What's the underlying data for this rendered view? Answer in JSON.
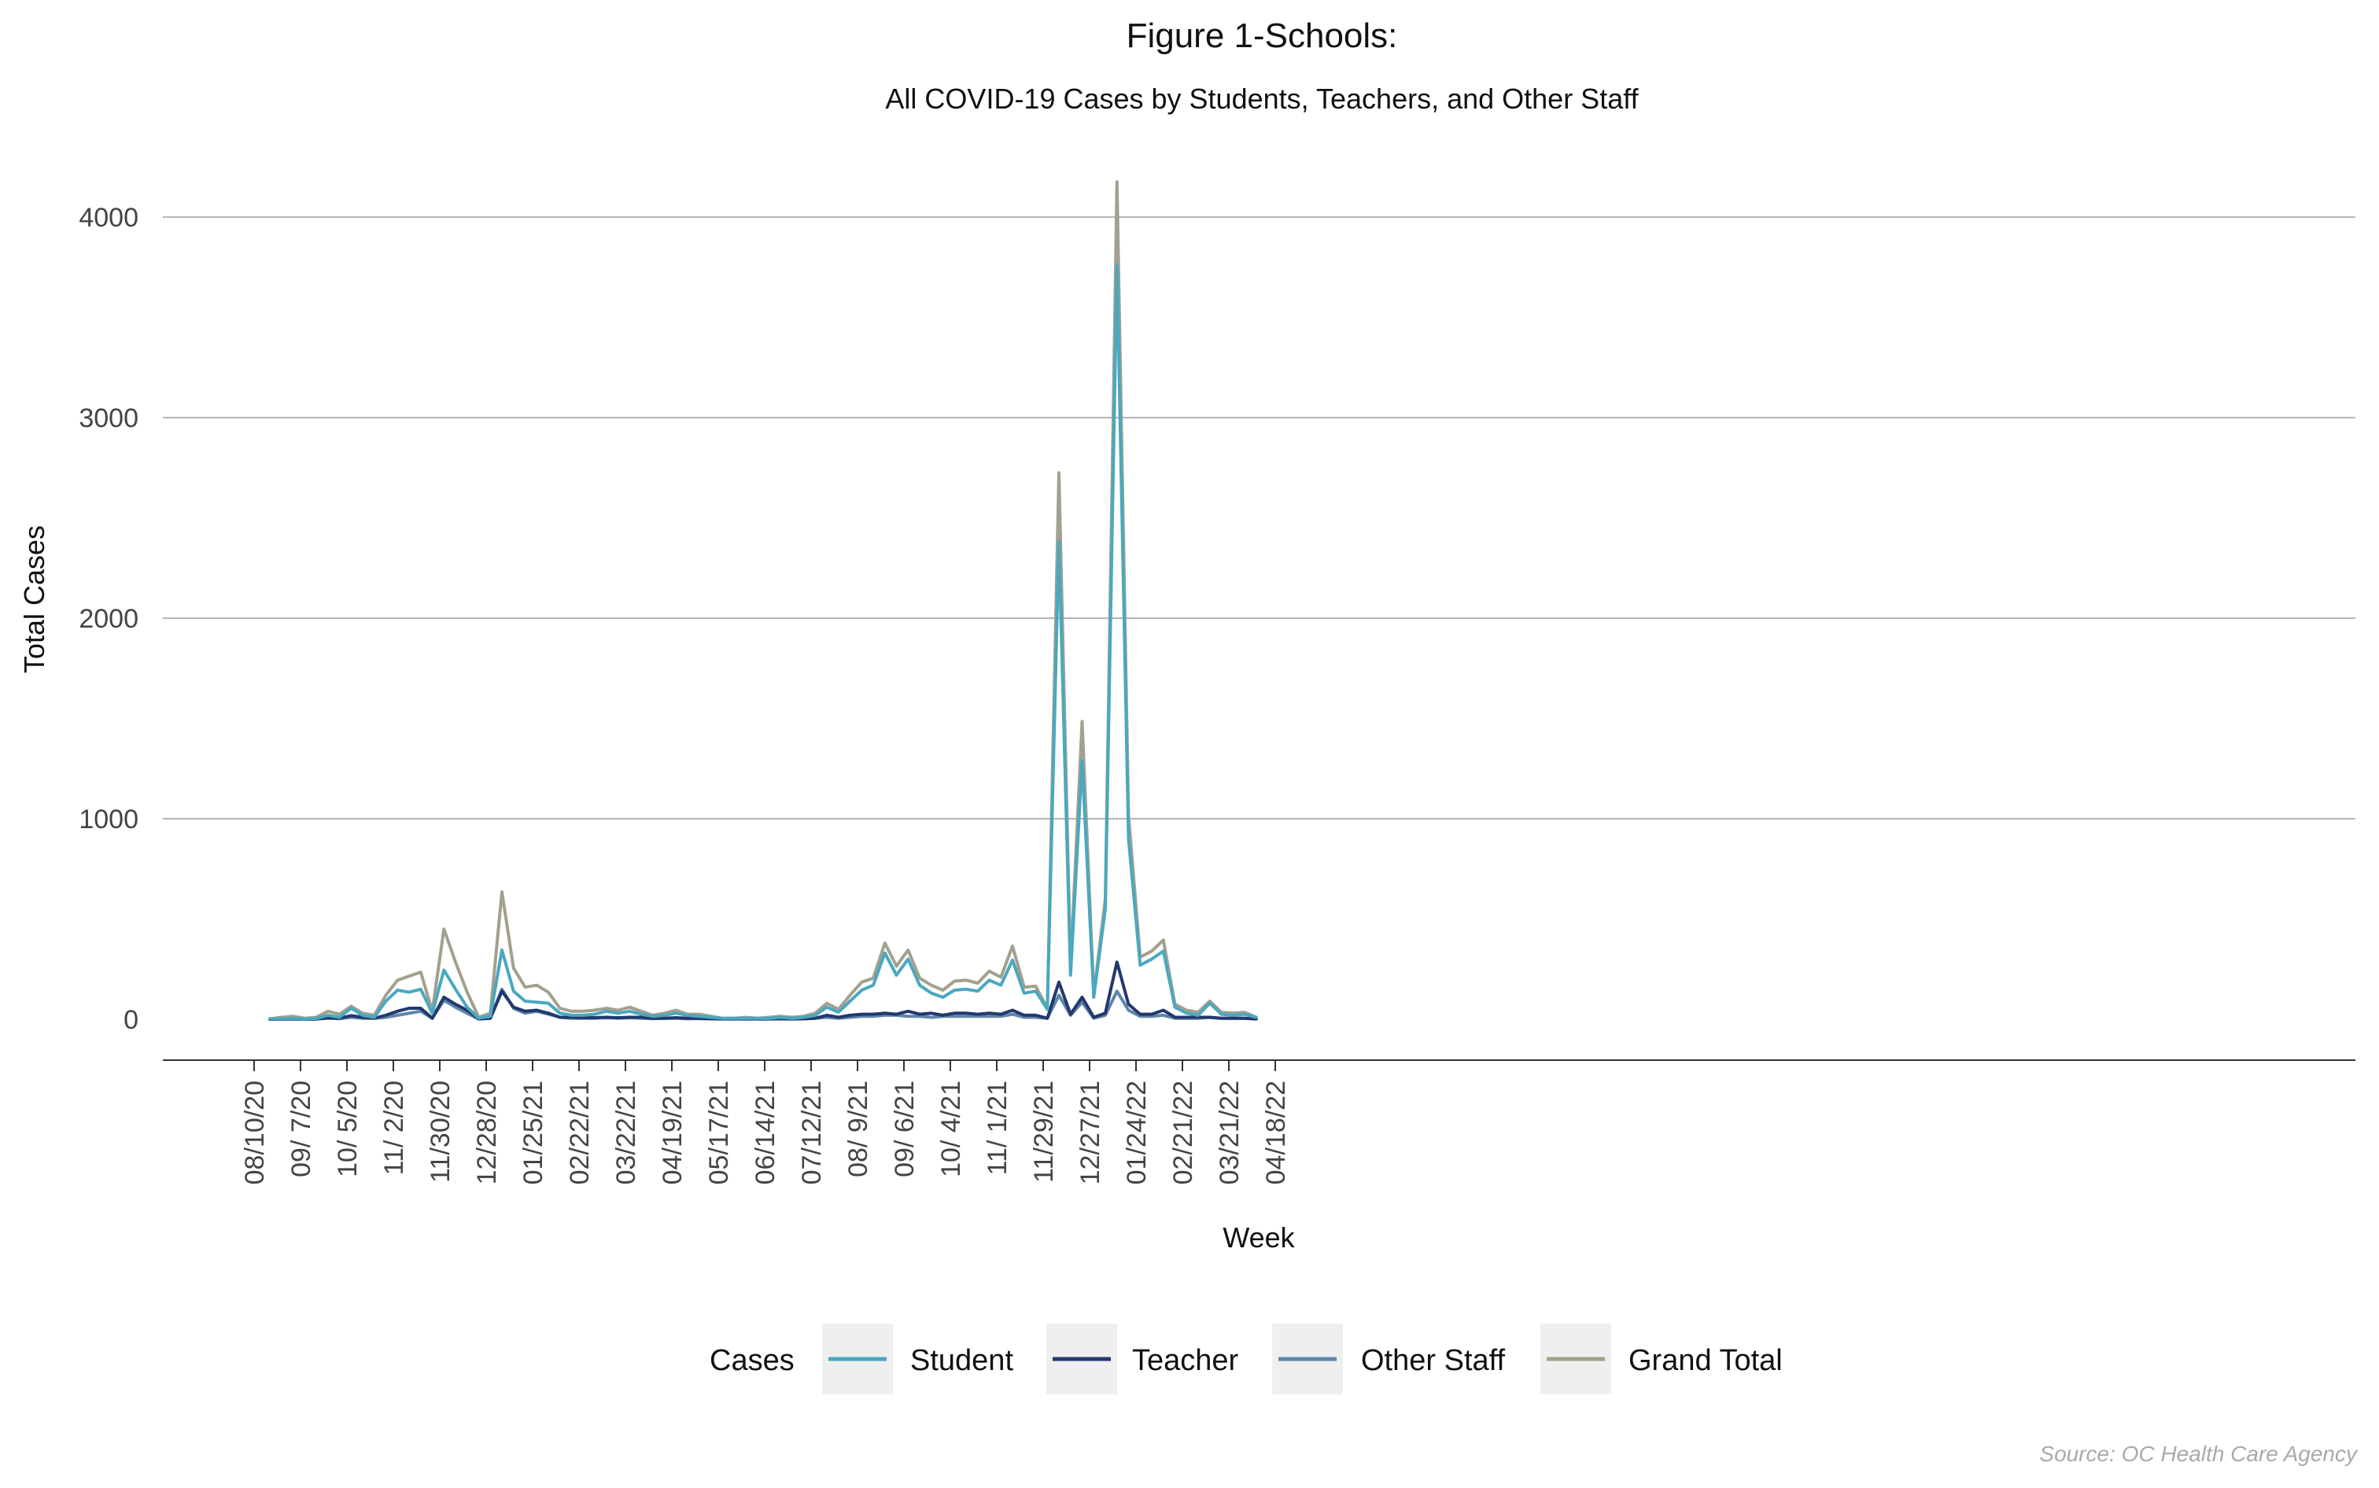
{
  "chart_data": {
    "type": "line",
    "title": "Figure 1-Schools:",
    "subtitle": "All COVID-19 Cases by Students, Teachers, and Other Staff",
    "xlabel": "Week",
    "ylabel": "Total Cases",
    "source": "Source: OC Health Care Agency",
    "ylim": [
      -200,
      4300
    ],
    "yticks": [
      0,
      1000,
      2000,
      3000,
      4000
    ],
    "xticks": [
      "08/10/20",
      "09/ 7/20",
      "10/ 5/20",
      "11/ 2/20",
      "11/30/20",
      "12/28/20",
      "01/25/21",
      "02/22/21",
      "03/22/21",
      "04/19/21",
      "05/17/21",
      "06/14/21",
      "07/12/21",
      "08/ 9/21",
      "09/ 6/21",
      "10/ 4/21",
      "11/ 1/21",
      "11/29/21",
      "12/27/21",
      "01/24/22",
      "02/21/22",
      "03/21/22",
      "04/18/22"
    ],
    "week_start": "08/10/20",
    "legend": {
      "title": "Cases",
      "position": "bottom"
    },
    "grid": true,
    "series": [
      {
        "name": "Student",
        "color": "#4aa8bf",
        "values": [
          2,
          3,
          5,
          1,
          4,
          20,
          10,
          55,
          20,
          10,
          90,
          145,
          135,
          150,
          30,
          245,
          150,
          60,
          5,
          15,
          345,
          140,
          90,
          85,
          80,
          30,
          20,
          20,
          25,
          40,
          30,
          40,
          25,
          15,
          20,
          30,
          20,
          15,
          10,
          5,
          5,
          5,
          5,
          5,
          10,
          5,
          10,
          20,
          60,
          35,
          90,
          145,
          170,
          330,
          220,
          300,
          170,
          130,
          110,
          145,
          150,
          140,
          195,
          170,
          295,
          130,
          140,
          50,
          2380,
          220,
          1290,
          110,
          550,
          3760,
          900,
          270,
          300,
          340,
          60,
          30,
          20,
          80,
          25,
          20,
          25,
          10
        ]
      },
      {
        "name": "Teacher",
        "color": "#22386e",
        "values": [
          0,
          1,
          2,
          0,
          1,
          8,
          5,
          18,
          10,
          5,
          20,
          40,
          55,
          55,
          5,
          110,
          75,
          45,
          2,
          5,
          140,
          60,
          40,
          45,
          30,
          10,
          10,
          8,
          8,
          10,
          8,
          10,
          10,
          5,
          5,
          8,
          5,
          5,
          3,
          2,
          2,
          2,
          2,
          2,
          3,
          2,
          3,
          5,
          20,
          10,
          20,
          25,
          25,
          30,
          25,
          40,
          25,
          30,
          20,
          30,
          30,
          25,
          30,
          25,
          45,
          20,
          20,
          5,
          185,
          25,
          110,
          10,
          30,
          285,
          75,
          25,
          25,
          45,
          10,
          10,
          10,
          10,
          5,
          5,
          5,
          2
        ]
      },
      {
        "name": "Other Staff",
        "color": "#5e86a8",
        "values": [
          0,
          1,
          1,
          0,
          1,
          5,
          3,
          10,
          5,
          5,
          10,
          20,
          30,
          40,
          5,
          95,
          60,
          30,
          1,
          5,
          150,
          55,
          30,
          40,
          25,
          10,
          5,
          5,
          5,
          8,
          5,
          8,
          5,
          3,
          5,
          5,
          3,
          3,
          2,
          1,
          1,
          1,
          1,
          1,
          2,
          1,
          2,
          5,
          10,
          5,
          10,
          15,
          15,
          20,
          20,
          15,
          15,
          10,
          15,
          15,
          15,
          15,
          15,
          15,
          25,
          10,
          10,
          5,
          120,
          20,
          85,
          5,
          20,
          140,
          45,
          15,
          15,
          20,
          5,
          5,
          5,
          10,
          5,
          5,
          5,
          1
        ]
      },
      {
        "name": "Grand Total",
        "color": "#a3a08e",
        "values": [
          2,
          10,
          15,
          5,
          10,
          40,
          25,
          65,
          30,
          20,
          120,
          195,
          215,
          235,
          40,
          450,
          285,
          135,
          10,
          30,
          635,
          255,
          160,
          170,
          135,
          55,
          40,
          40,
          45,
          55,
          45,
          60,
          40,
          20,
          30,
          45,
          25,
          25,
          15,
          5,
          5,
          10,
          5,
          10,
          15,
          10,
          15,
          30,
          80,
          50,
          120,
          185,
          205,
          380,
          265,
          345,
          205,
          170,
          145,
          190,
          195,
          180,
          240,
          210,
          365,
          160,
          165,
          55,
          2725,
          265,
          1485,
          125,
          600,
          4175,
          1020,
          310,
          340,
          395,
          75,
          45,
          35,
          90,
          35,
          30,
          35,
          10
        ]
      }
    ]
  }
}
